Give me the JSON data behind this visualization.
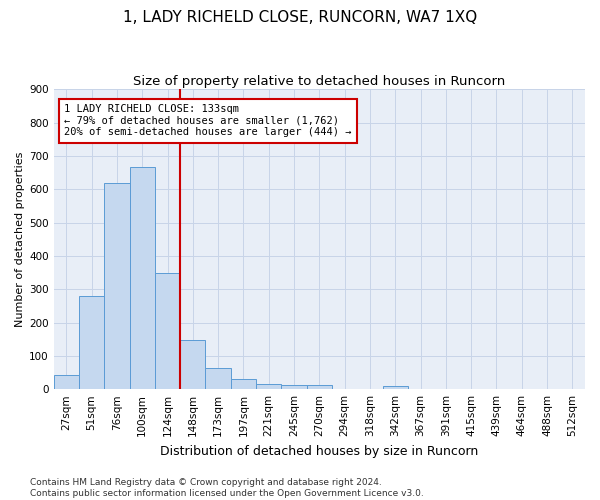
{
  "title": "1, LADY RICHELD CLOSE, RUNCORN, WA7 1XQ",
  "subtitle": "Size of property relative to detached houses in Runcorn",
  "xlabel": "Distribution of detached houses by size in Runcorn",
  "ylabel": "Number of detached properties",
  "bar_labels": [
    "27sqm",
    "51sqm",
    "76sqm",
    "100sqm",
    "124sqm",
    "148sqm",
    "173sqm",
    "197sqm",
    "221sqm",
    "245sqm",
    "270sqm",
    "294sqm",
    "318sqm",
    "342sqm",
    "367sqm",
    "391sqm",
    "415sqm",
    "439sqm",
    "464sqm",
    "488sqm",
    "512sqm"
  ],
  "bar_values": [
    42,
    280,
    620,
    668,
    348,
    148,
    65,
    30,
    16,
    12,
    12,
    0,
    0,
    10,
    0,
    0,
    0,
    0,
    0,
    0,
    0
  ],
  "bar_color": "#c5d8ef",
  "bar_edge_color": "#5b9bd5",
  "vline_x": 4.5,
  "vline_color": "#cc0000",
  "annotation_text": "1 LADY RICHELD CLOSE: 133sqm\n← 79% of detached houses are smaller (1,762)\n20% of semi-detached houses are larger (444) →",
  "annotation_box_color": "#ffffff",
  "annotation_box_edge": "#cc0000",
  "ylim": [
    0,
    900
  ],
  "yticks": [
    0,
    100,
    200,
    300,
    400,
    500,
    600,
    700,
    800,
    900
  ],
  "bg_color": "#ffffff",
  "plot_bg_color": "#e8eef7",
  "grid_color": "#c8d4e8",
  "footer": "Contains HM Land Registry data © Crown copyright and database right 2024.\nContains public sector information licensed under the Open Government Licence v3.0.",
  "title_fontsize": 11,
  "subtitle_fontsize": 9.5,
  "xlabel_fontsize": 9,
  "ylabel_fontsize": 8,
  "tick_fontsize": 7.5,
  "annotation_fontsize": 7.5,
  "footer_fontsize": 6.5
}
